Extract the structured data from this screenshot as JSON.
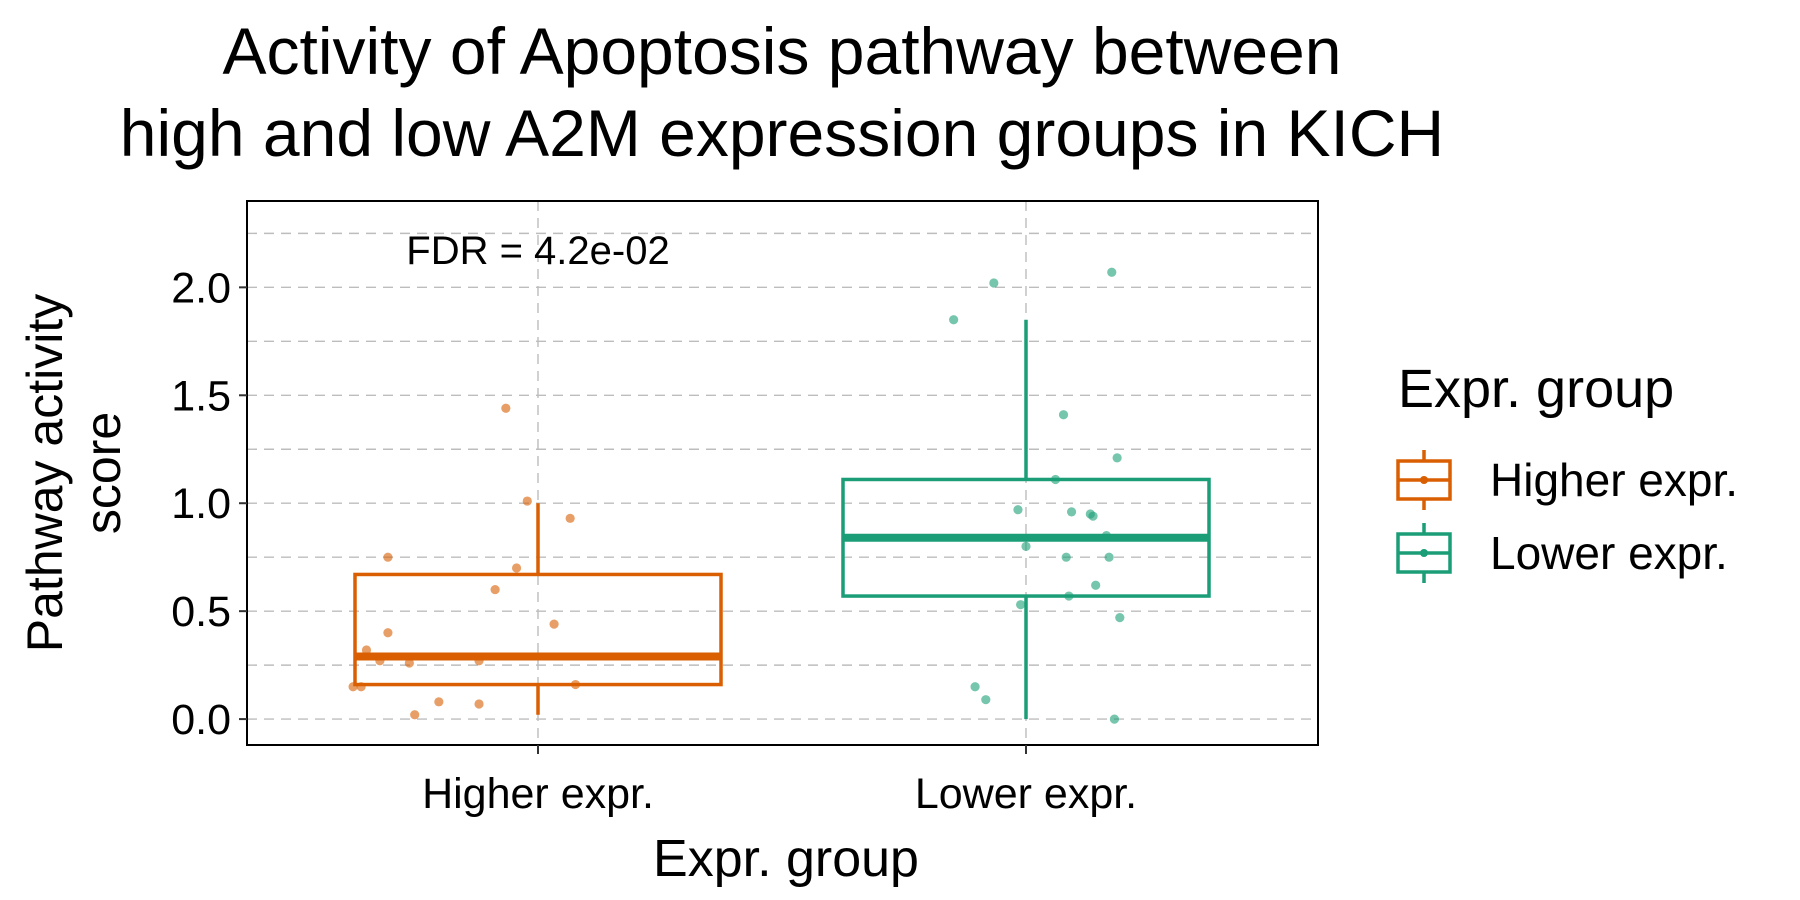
{
  "chart_data": {
    "type": "boxplot",
    "title": "Activity of Apoptosis pathway between\nhigh and low A2M expression groups in KICH",
    "xlabel": "Expr. group",
    "ylabel": "Pathway activity\nscore",
    "annotation": "FDR = 4.2e-02",
    "ylim": [
      -0.12,
      2.4
    ],
    "yticks": [
      "0.0",
      "0.5",
      "1.0",
      "1.5",
      "2.0"
    ],
    "grid": "dashed",
    "legend": {
      "title": "Expr. group",
      "placement": "right"
    },
    "categories": [
      "Higher expr.",
      "Lower expr."
    ],
    "series": [
      {
        "name": "Higher expr.",
        "color": "#D95F02",
        "box": {
          "q1": 0.16,
          "median": 0.29,
          "q3": 0.67,
          "whisker_low": 0.02,
          "whisker_high": 1.0
        },
        "points": [
          [
            -0.12,
            1.44
          ],
          [
            -0.04,
            1.01
          ],
          [
            0.12,
            0.93
          ],
          [
            -0.08,
            0.7
          ],
          [
            -0.56,
            0.75
          ],
          [
            -0.16,
            0.6
          ],
          [
            0.06,
            0.44
          ],
          [
            -0.56,
            0.4
          ],
          [
            -0.64,
            0.32
          ],
          [
            -0.59,
            0.27
          ],
          [
            -0.48,
            0.26
          ],
          [
            -0.22,
            0.27
          ],
          [
            -0.66,
            0.15
          ],
          [
            -0.69,
            0.15
          ],
          [
            0.14,
            0.16
          ],
          [
            -0.37,
            0.08
          ],
          [
            -0.22,
            0.07
          ],
          [
            -0.46,
            0.02
          ]
        ]
      },
      {
        "name": "Lower expr.",
        "color": "#1B9E77",
        "box": {
          "q1": 0.57,
          "median": 0.84,
          "q3": 1.11,
          "whisker_low": 0.0,
          "whisker_high": 1.85
        },
        "points": [
          [
            -0.27,
            1.85
          ],
          [
            -0.12,
            2.02
          ],
          [
            0.32,
            2.07
          ],
          [
            0.14,
            1.41
          ],
          [
            0.34,
            1.21
          ],
          [
            0.11,
            1.11
          ],
          [
            -0.03,
            0.97
          ],
          [
            0.17,
            0.96
          ],
          [
            0.24,
            0.95
          ],
          [
            0.25,
            0.94
          ],
          [
            0.3,
            0.85
          ],
          [
            0.0,
            0.8
          ],
          [
            0.15,
            0.75
          ],
          [
            0.31,
            0.75
          ],
          [
            0.26,
            0.62
          ],
          [
            0.16,
            0.57
          ],
          [
            -0.02,
            0.53
          ],
          [
            0.35,
            0.47
          ],
          [
            -0.19,
            0.15
          ],
          [
            -0.15,
            0.09
          ],
          [
            0.33,
            0.0
          ]
        ]
      }
    ]
  }
}
